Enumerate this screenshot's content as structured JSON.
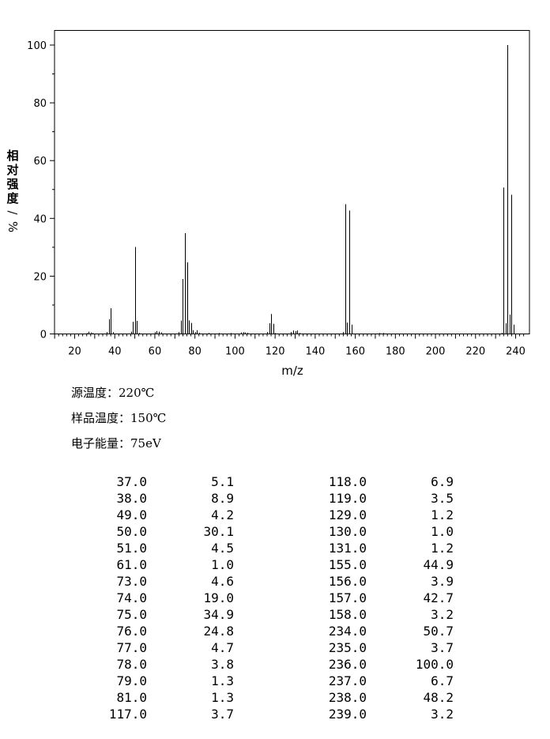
{
  "chart_data": {
    "type": "bar",
    "xlabel": "m/z",
    "ylabel_chars": [
      "相",
      "对",
      "强",
      "度",
      "/",
      "%"
    ],
    "xlim": [
      10,
      245
    ],
    "ylim": [
      0,
      100
    ],
    "x_ticks": [
      20,
      40,
      60,
      80,
      100,
      120,
      140,
      160,
      180,
      200,
      220,
      240
    ],
    "y_ticks": [
      0,
      20,
      40,
      60,
      80,
      100
    ],
    "grid": false,
    "peaks": [
      {
        "mz": 26,
        "intensity": 0.3
      },
      {
        "mz": 27,
        "intensity": 0.8
      },
      {
        "mz": 28,
        "intensity": 0.5
      },
      {
        "mz": 29,
        "intensity": 0.3
      },
      {
        "mz": 36,
        "intensity": 0.6
      },
      {
        "mz": 37,
        "intensity": 5.1
      },
      {
        "mz": 38,
        "intensity": 8.9
      },
      {
        "mz": 39,
        "intensity": 0.6
      },
      {
        "mz": 48,
        "intensity": 0.8
      },
      {
        "mz": 49,
        "intensity": 4.2
      },
      {
        "mz": 50,
        "intensity": 30.1
      },
      {
        "mz": 51,
        "intensity": 4.5
      },
      {
        "mz": 52,
        "intensity": 0.3
      },
      {
        "mz": 60,
        "intensity": 0.6
      },
      {
        "mz": 61,
        "intensity": 1.0
      },
      {
        "mz": 62,
        "intensity": 0.8
      },
      {
        "mz": 63,
        "intensity": 0.5
      },
      {
        "mz": 72,
        "intensity": 0.6
      },
      {
        "mz": 73,
        "intensity": 4.6
      },
      {
        "mz": 74,
        "intensity": 19.0
      },
      {
        "mz": 75,
        "intensity": 34.9
      },
      {
        "mz": 76,
        "intensity": 24.8
      },
      {
        "mz": 77,
        "intensity": 4.7
      },
      {
        "mz": 78,
        "intensity": 3.8
      },
      {
        "mz": 79,
        "intensity": 1.3
      },
      {
        "mz": 80,
        "intensity": 0.6
      },
      {
        "mz": 81,
        "intensity": 1.3
      },
      {
        "mz": 82,
        "intensity": 0.4
      },
      {
        "mz": 87,
        "intensity": 0.3
      },
      {
        "mz": 92,
        "intensity": 0.3
      },
      {
        "mz": 98,
        "intensity": 0.3
      },
      {
        "mz": 103,
        "intensity": 0.5
      },
      {
        "mz": 104,
        "intensity": 0.6
      },
      {
        "mz": 105,
        "intensity": 0.5
      },
      {
        "mz": 106,
        "intensity": 0.4
      },
      {
        "mz": 116,
        "intensity": 0.6
      },
      {
        "mz": 117,
        "intensity": 3.7
      },
      {
        "mz": 118,
        "intensity": 6.9
      },
      {
        "mz": 119,
        "intensity": 3.5
      },
      {
        "mz": 120,
        "intensity": 0.3
      },
      {
        "mz": 128,
        "intensity": 0.6
      },
      {
        "mz": 129,
        "intensity": 1.2
      },
      {
        "mz": 130,
        "intensity": 1.0
      },
      {
        "mz": 131,
        "intensity": 1.2
      },
      {
        "mz": 132,
        "intensity": 0.3
      },
      {
        "mz": 154,
        "intensity": 0.6
      },
      {
        "mz": 155,
        "intensity": 44.9
      },
      {
        "mz": 156,
        "intensity": 3.9
      },
      {
        "mz": 157,
        "intensity": 42.7
      },
      {
        "mz": 158,
        "intensity": 3.2
      },
      {
        "mz": 172,
        "intensity": 0.3
      },
      {
        "mz": 174,
        "intensity": 0.3
      },
      {
        "mz": 233,
        "intensity": 0.4
      },
      {
        "mz": 234,
        "intensity": 50.7
      },
      {
        "mz": 235,
        "intensity": 3.7
      },
      {
        "mz": 236,
        "intensity": 100.0
      },
      {
        "mz": 237,
        "intensity": 6.7
      },
      {
        "mz": 238,
        "intensity": 48.2
      },
      {
        "mz": 239,
        "intensity": 3.2
      }
    ]
  },
  "conditions": [
    {
      "label": "源温度：",
      "value": "220℃"
    },
    {
      "label": "样品温度：",
      "value": "150℃"
    },
    {
      "label": "电子能量：",
      "value": "75eV"
    }
  ],
  "peak_table": [
    [
      "37.0",
      "5.1",
      "118.0",
      "6.9"
    ],
    [
      "38.0",
      "8.9",
      "119.0",
      "3.5"
    ],
    [
      "49.0",
      "4.2",
      "129.0",
      "1.2"
    ],
    [
      "50.0",
      "30.1",
      "130.0",
      "1.0"
    ],
    [
      "51.0",
      "4.5",
      "131.0",
      "1.2"
    ],
    [
      "61.0",
      "1.0",
      "155.0",
      "44.9"
    ],
    [
      "73.0",
      "4.6",
      "156.0",
      "3.9"
    ],
    [
      "74.0",
      "19.0",
      "157.0",
      "42.7"
    ],
    [
      "75.0",
      "34.9",
      "158.0",
      "3.2"
    ],
    [
      "76.0",
      "24.8",
      "234.0",
      "50.7"
    ],
    [
      "77.0",
      "4.7",
      "235.0",
      "3.7"
    ],
    [
      "78.0",
      "3.8",
      "236.0",
      "100.0"
    ],
    [
      "79.0",
      "1.3",
      "237.0",
      "6.7"
    ],
    [
      "81.0",
      "1.3",
      "238.0",
      "48.2"
    ],
    [
      "117.0",
      "3.7",
      "239.0",
      "3.2"
    ]
  ]
}
